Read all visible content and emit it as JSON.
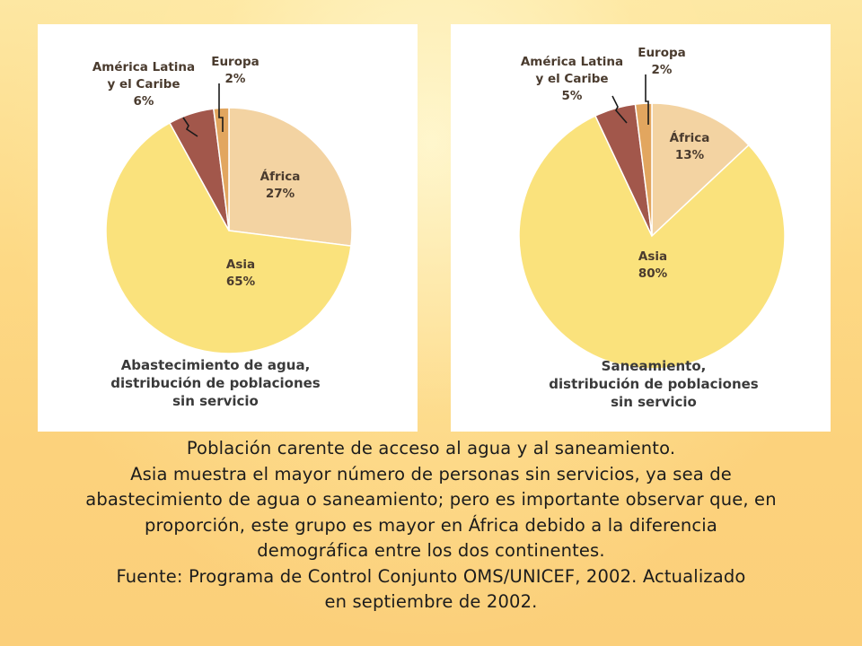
{
  "chart_data": [
    {
      "type": "pie",
      "title": "Abastecimiento de agua, distribución de poblaciones sin servicio",
      "title_lines": [
        "Abastecimiento de agua,",
        "distribución de poblaciones",
        "sin servicio"
      ],
      "slices": [
        {
          "label": "África",
          "value": 27,
          "value_label": "27%",
          "color": "#f3d3a2"
        },
        {
          "label": "Asia",
          "value": 65,
          "value_label": "65%",
          "color": "#fae27c"
        },
        {
          "label": "América Latina y el Caribe",
          "label_lines": [
            "América Latina",
            "y el Caribe"
          ],
          "value": 6,
          "value_label": "6%",
          "color": "#a2574b"
        },
        {
          "label": "Europa",
          "value": 2,
          "value_label": "2%",
          "color": "#e2a65f"
        }
      ]
    },
    {
      "type": "pie",
      "title": "Saneamiento, distribución de poblaciones sin servicio",
      "title_lines": [
        "Saneamiento,",
        "distribución de poblaciones",
        "sin servicio"
      ],
      "slices": [
        {
          "label": "África",
          "value": 13,
          "value_label": "13%",
          "color": "#f3d3a2"
        },
        {
          "label": "Asia",
          "value": 80,
          "value_label": "80%",
          "color": "#fae27c"
        },
        {
          "label": "América Latina y el Caribe",
          "label_lines": [
            "América Latina",
            "y el Caribe"
          ],
          "value": 5,
          "value_label": "5%",
          "color": "#a2574b"
        },
        {
          "label": "Europa",
          "value": 2,
          "value_label": "2%",
          "color": "#e2a65f"
        }
      ]
    }
  ],
  "caption": {
    "line1": "Población carente de acceso al agua y al saneamiento.",
    "line2": "Asia muestra el mayor número de personas sin servicios, ya sea de",
    "line3": "abastecimiento de agua o saneamiento; pero es importante observar que, en",
    "line4": "proporción, este grupo es mayor en África debido a la diferencia",
    "line5": "demográfica entre los dos continentes.",
    "line6": "Fuente: Programa de Control Conjunto OMS/UNICEF, 2002. Actualizado",
    "line7": "en septiembre de 2002."
  }
}
